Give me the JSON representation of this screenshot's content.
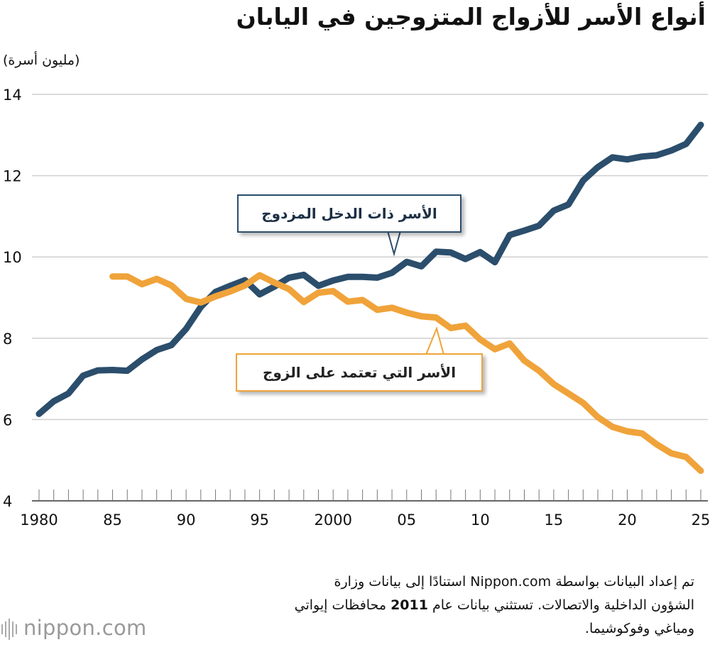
{
  "title": "أنواع الأسر للأزواج المتزوجين في اليابان",
  "unit_label": "(مليون أسرة)",
  "colors": {
    "dual_income": "#2b4e6c",
    "single_income": "#f0a33a",
    "grid": "#cfcfcf",
    "axis": "#333333"
  },
  "callouts": {
    "dual_income": "الأسر ذات الدخل المزدوج",
    "single_income": "الأسر التي تعتمد على الزوج"
  },
  "source": {
    "line1": "تم إعداد البيانات بواسطة Nippon.com استنادًا إلى بيانات وزارة",
    "line2_a": "الشؤون الداخلية والاتصالات. تستثني بيانات عام ",
    "line2_year": "2011",
    "line2_b": " محافظات إيواتي",
    "line3": "ومياغي وفوكوشيما."
  },
  "logo": {
    "text": "nippon.com"
  },
  "chart_data": {
    "type": "line",
    "ylim": [
      4,
      14
    ],
    "xlim": [
      1980,
      2025
    ],
    "yticks": [
      4,
      6,
      8,
      10,
      12,
      14
    ],
    "xtick_values": [
      1980,
      1985,
      1990,
      1995,
      2000,
      2005,
      2010,
      2015,
      2020,
      2025
    ],
    "xtick_labels": [
      "1980",
      "85",
      "90",
      "95",
      "2000",
      "05",
      "10",
      "15",
      "20",
      "25"
    ],
    "grid": true,
    "series": [
      {
        "name": "الأسر ذات الدخل المزدوج",
        "x": [
          1980,
          1981,
          1982,
          1983,
          1984,
          1985,
          1986,
          1987,
          1988,
          1989,
          1990,
          1991,
          1992,
          1993,
          1994,
          1995,
          1996,
          1997,
          1998,
          1999,
          2000,
          2001,
          2002,
          2003,
          2004,
          2005,
          2006,
          2007,
          2008,
          2009,
          2010,
          2011,
          2012,
          2013,
          2014,
          2015,
          2016,
          2017,
          2018,
          2019,
          2020,
          2021,
          2022,
          2023,
          2024,
          2025
        ],
        "values": [
          6.14,
          6.45,
          6.64,
          7.08,
          7.21,
          7.22,
          7.2,
          7.48,
          7.71,
          7.83,
          8.23,
          8.77,
          9.14,
          9.29,
          9.43,
          9.08,
          9.27,
          9.49,
          9.56,
          9.29,
          9.42,
          9.51,
          9.51,
          9.49,
          9.61,
          9.88,
          9.77,
          10.13,
          10.11,
          9.95,
          10.12,
          9.87,
          10.54,
          10.65,
          10.77,
          11.14,
          11.29,
          11.88,
          12.21,
          12.45,
          12.4,
          12.47,
          12.5,
          12.62,
          12.78,
          13.25
        ]
      },
      {
        "name": "الأسر التي تعتمد على الزوج",
        "x": [
          1985,
          1986,
          1987,
          1988,
          1989,
          1990,
          1991,
          1992,
          1993,
          1994,
          1995,
          1996,
          1997,
          1998,
          1999,
          2000,
          2001,
          2002,
          2003,
          2004,
          2005,
          2006,
          2007,
          2008,
          2009,
          2010,
          2011,
          2012,
          2013,
          2014,
          2015,
          2016,
          2017,
          2018,
          2019,
          2020,
          2021,
          2022,
          2023,
          2024,
          2025
        ],
        "values": [
          9.52,
          9.52,
          9.33,
          9.46,
          9.3,
          8.97,
          8.88,
          9.03,
          9.15,
          9.3,
          9.55,
          9.37,
          9.21,
          8.89,
          9.12,
          9.16,
          8.9,
          8.94,
          8.7,
          8.75,
          8.63,
          8.54,
          8.51,
          8.25,
          8.31,
          7.97,
          7.73,
          7.87,
          7.45,
          7.2,
          6.87,
          6.64,
          6.41,
          6.06,
          5.82,
          5.71,
          5.66,
          5.39,
          5.17,
          5.08,
          4.74
        ]
      }
    ]
  }
}
